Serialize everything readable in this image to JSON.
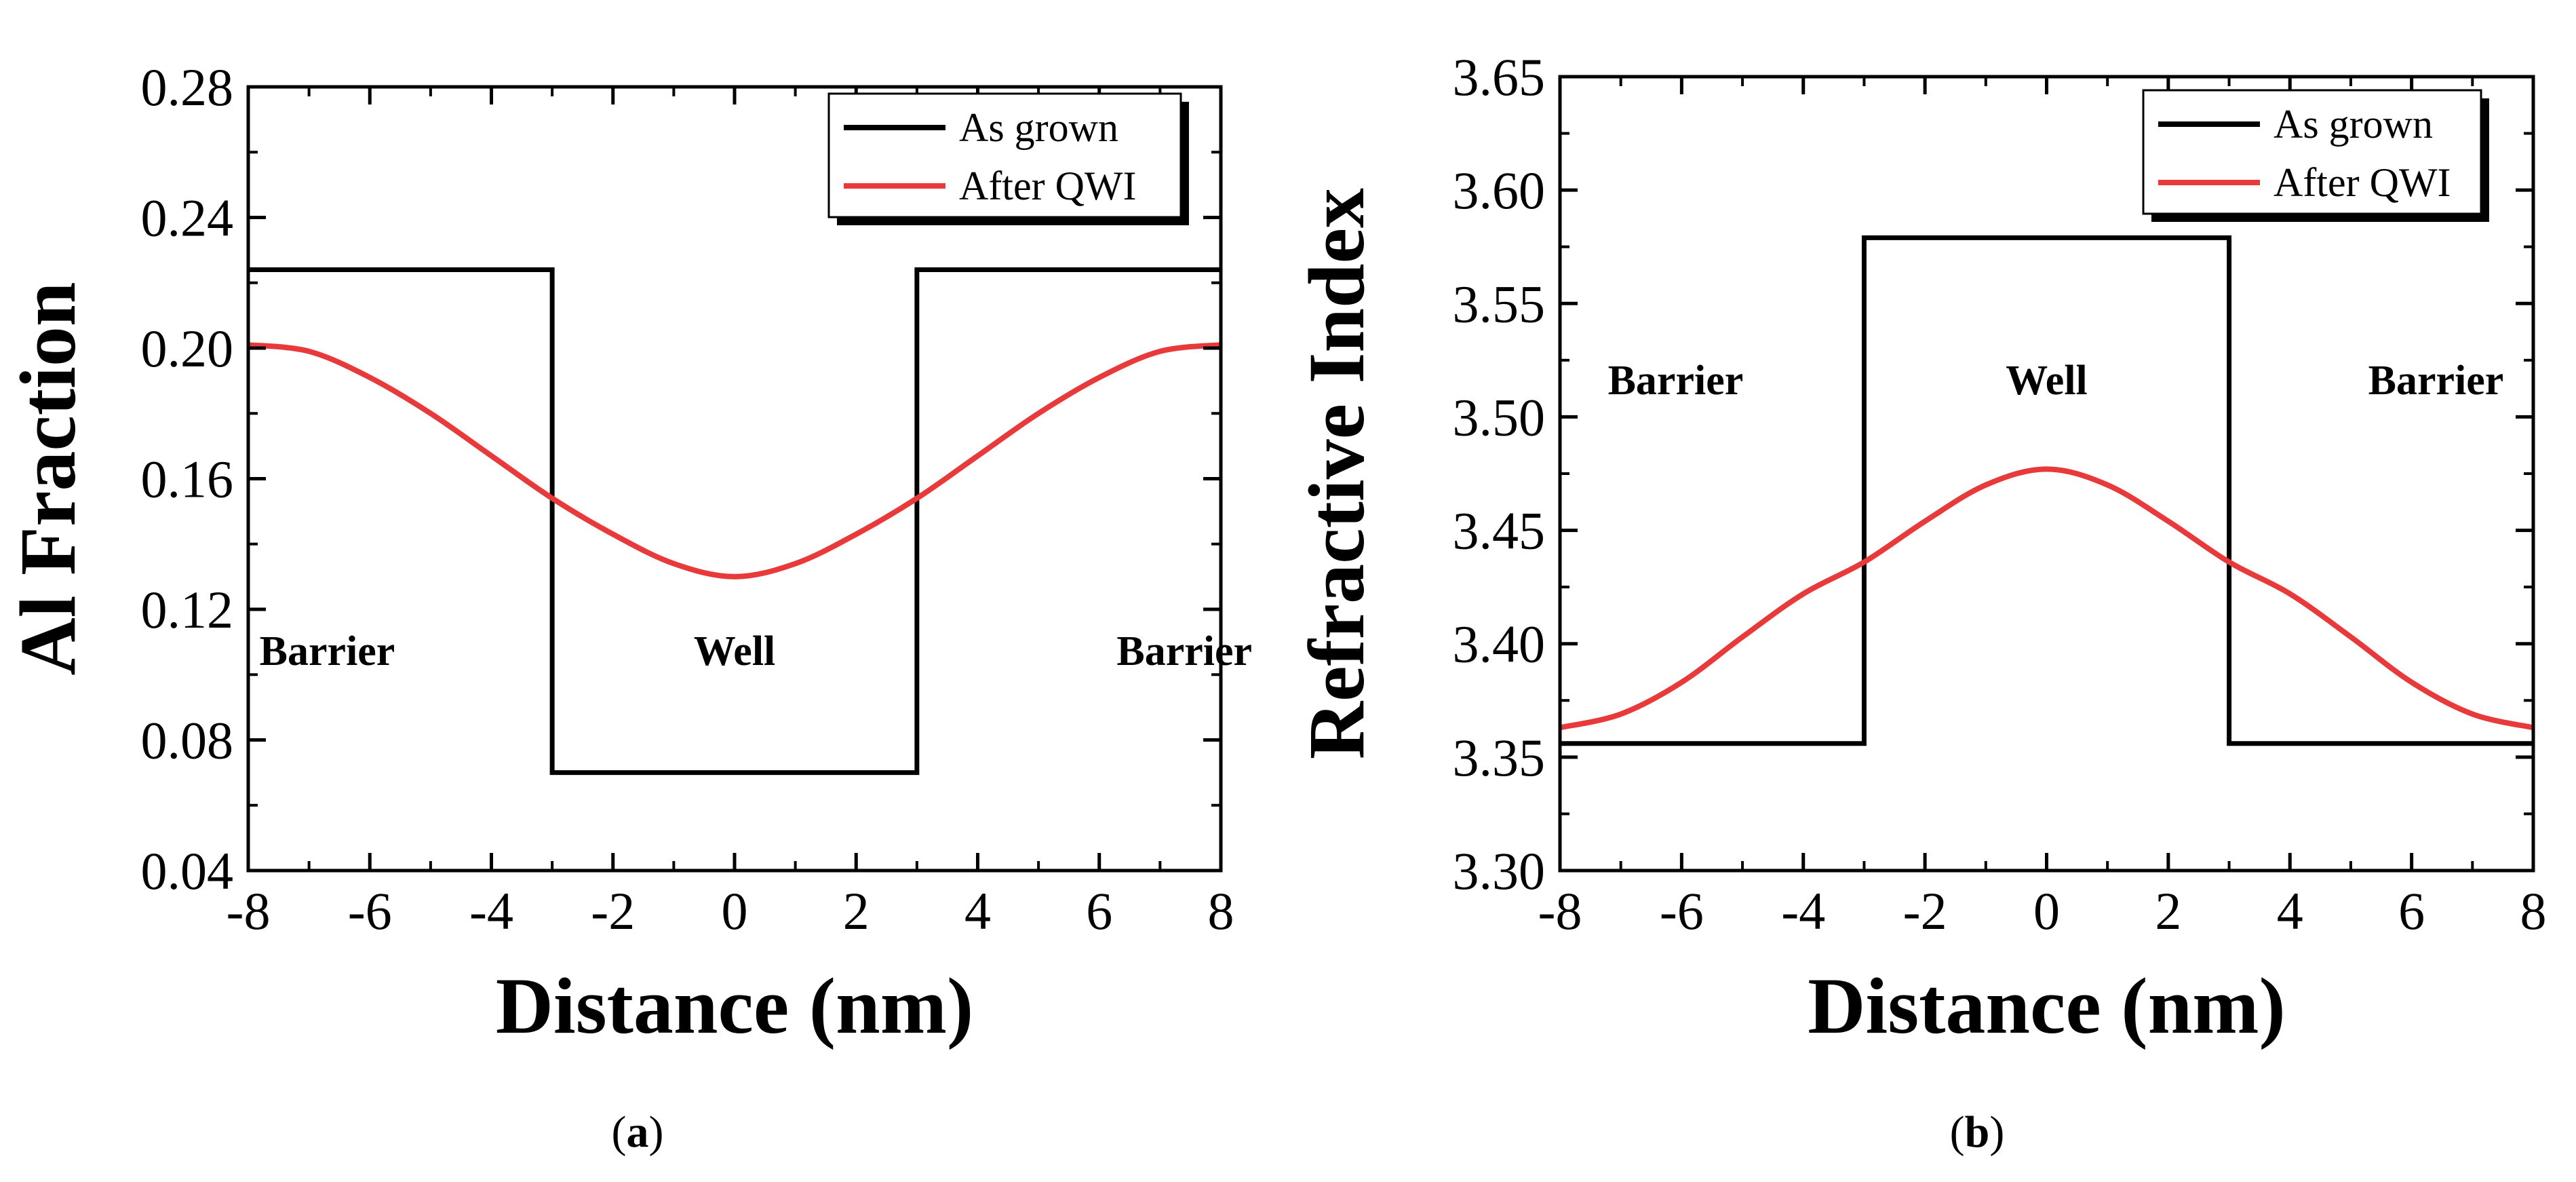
{
  "chart_data": [
    {
      "type": "line",
      "panel": "a",
      "xlabel": "Distance (nm)",
      "ylabel": "Al Fraction",
      "xlim": [
        -8,
        8
      ],
      "ylim": [
        0.04,
        0.28
      ],
      "xticks": [
        -8,
        -6,
        -4,
        -2,
        0,
        2,
        4,
        6,
        8
      ],
      "xtick_labels": [
        "-8",
        "-6",
        "-4",
        "-2",
        "0",
        "2",
        "4",
        "6",
        "8"
      ],
      "yticks": [
        0.04,
        0.08,
        0.12,
        0.16,
        0.2,
        0.24,
        0.28
      ],
      "ytick_labels": [
        "0.04",
        "0.08",
        "0.12",
        "0.16",
        "0.20",
        "0.24",
        "0.28"
      ],
      "grid": false,
      "legend_position": "top-right",
      "series": [
        {
          "name": "As grown",
          "color": "#000000",
          "shape": "step",
          "x": [
            -8,
            -3,
            -3,
            3,
            3,
            8
          ],
          "y": [
            0.224,
            0.224,
            0.07,
            0.07,
            0.224,
            0.224
          ]
        },
        {
          "name": "After QWI",
          "color": "#e8393b",
          "shape": "smooth",
          "x": [
            -8,
            -7,
            -6,
            -5,
            -4,
            -3,
            -2,
            -1,
            0,
            1,
            2,
            3,
            4,
            5,
            6,
            7,
            8
          ],
          "y": [
            0.201,
            0.199,
            0.191,
            0.18,
            0.167,
            0.154,
            0.143,
            0.134,
            0.13,
            0.134,
            0.143,
            0.154,
            0.167,
            0.18,
            0.191,
            0.199,
            0.201
          ]
        }
      ],
      "annotations": [
        {
          "text": "Barrier",
          "x": -6.7,
          "y": 0.103
        },
        {
          "text": "Well",
          "x": 0,
          "y": 0.103
        },
        {
          "text": "Barrier",
          "x": 7.4,
          "y": 0.103
        }
      ]
    },
    {
      "type": "line",
      "panel": "b",
      "xlabel": "Distance (nm)",
      "ylabel": "Refractive Index",
      "xlim": [
        -8,
        8
      ],
      "ylim": [
        3.3,
        3.65
      ],
      "xticks": [
        -8,
        -6,
        -4,
        -2,
        0,
        2,
        4,
        6,
        8
      ],
      "xtick_labels": [
        "-8",
        "-6",
        "-4",
        "-2",
        "0",
        "2",
        "4",
        "6",
        "8"
      ],
      "yticks": [
        3.3,
        3.35,
        3.4,
        3.45,
        3.5,
        3.55,
        3.6,
        3.65
      ],
      "ytick_labels": [
        "3.30",
        "3.35",
        "3.40",
        "3.45",
        "3.50",
        "3.55",
        "3.60",
        "3.65"
      ],
      "grid": false,
      "legend_position": "top-right",
      "series": [
        {
          "name": "As grown",
          "color": "#000000",
          "shape": "step",
          "x": [
            -8,
            -3,
            -3,
            3,
            3,
            8
          ],
          "y": [
            3.356,
            3.356,
            3.579,
            3.579,
            3.356,
            3.356
          ]
        },
        {
          "name": "After QWI",
          "color": "#e8393b",
          "shape": "smooth",
          "x": [
            -8,
            -7,
            -6,
            -5,
            -4,
            -3,
            -2,
            -1,
            0,
            1,
            2,
            3,
            4,
            5,
            6,
            7,
            8
          ],
          "y": [
            3.363,
            3.369,
            3.383,
            3.403,
            3.422,
            3.436,
            3.454,
            3.47,
            3.477,
            3.47,
            3.454,
            3.436,
            3.422,
            3.403,
            3.383,
            3.369,
            3.363
          ]
        }
      ],
      "annotations": [
        {
          "text": "Barrier",
          "x": -6.1,
          "y": 3.51
        },
        {
          "text": "Well",
          "x": 0,
          "y": 3.51
        },
        {
          "text": "Barrier",
          "x": 6.4,
          "y": 3.51
        }
      ]
    }
  ],
  "captions": [
    {
      "open": "(",
      "letter": "a",
      "close": ")"
    },
    {
      "open": "(",
      "letter": "b",
      "close": ")"
    }
  ]
}
